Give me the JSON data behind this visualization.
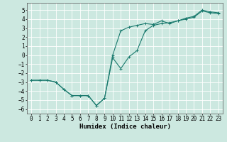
{
  "xlabel": "Humidex (Indice chaleur)",
  "background_color": "#cce8e0",
  "grid_color": "#ffffff",
  "line_color": "#1a7a6e",
  "xlim": [
    -0.5,
    23.5
  ],
  "ylim": [
    -6.5,
    5.8
  ],
  "yticks": [
    -6,
    -5,
    -4,
    -3,
    -2,
    -1,
    0,
    1,
    2,
    3,
    4,
    5
  ],
  "xticks": [
    0,
    1,
    2,
    3,
    4,
    5,
    6,
    7,
    8,
    9,
    10,
    11,
    12,
    13,
    14,
    15,
    16,
    17,
    18,
    19,
    20,
    21,
    22,
    23
  ],
  "line1_x": [
    0,
    1,
    2,
    3,
    4,
    5,
    6,
    7,
    8,
    9,
    10,
    11,
    12,
    13,
    14,
    15,
    16,
    17,
    18,
    19,
    20,
    21,
    22,
    23
  ],
  "line1_y": [
    -2.8,
    -2.8,
    -2.8,
    -3.0,
    -3.8,
    -4.5,
    -4.5,
    -4.5,
    -5.6,
    -4.8,
    0.0,
    2.7,
    3.1,
    3.3,
    3.5,
    3.4,
    3.8,
    3.5,
    3.8,
    4.1,
    4.3,
    5.0,
    4.8,
    4.7
  ],
  "line2_x": [
    0,
    1,
    2,
    3,
    4,
    5,
    6,
    7,
    8,
    9,
    10,
    11,
    12,
    13,
    14,
    15,
    16,
    17,
    18,
    19,
    20,
    21,
    22,
    23
  ],
  "line2_y": [
    -2.8,
    -2.8,
    -2.8,
    -3.0,
    -3.8,
    -4.5,
    -4.5,
    -4.5,
    -5.6,
    -4.8,
    -0.3,
    -1.5,
    -0.2,
    0.5,
    2.7,
    3.3,
    3.5,
    3.6,
    3.8,
    4.0,
    4.2,
    4.9,
    4.7,
    4.6
  ],
  "marker": "+",
  "markersize": 3,
  "linewidth": 0.8,
  "tick_fontsize": 5.5,
  "xlabel_fontsize": 6.5
}
